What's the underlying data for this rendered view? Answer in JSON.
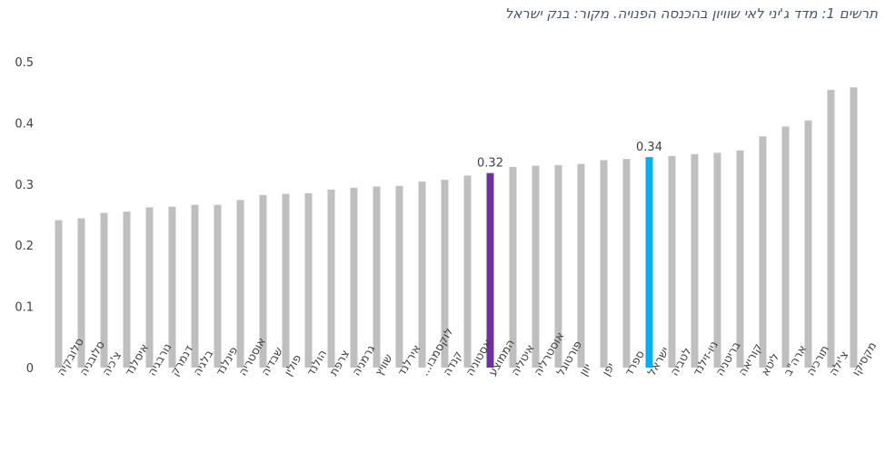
{
  "caption": "תרשים 1: מדד ג'יני לאי שוויון בהכנסה הפנויה. מקור: בנק ישראל",
  "chart_data": {
    "type": "bar",
    "title": "",
    "xlabel": "",
    "ylabel": "",
    "ylim": [
      0,
      0.5
    ],
    "yticks": [
      "0",
      "0.1",
      "0.2",
      "0.3",
      "0.4",
      "0.5"
    ],
    "grid": false,
    "legend": "none",
    "colors": {
      "default": "#bfbfbf",
      "highlight_average": "#7030a0",
      "highlight_israel": "#00b0f0"
    },
    "categories": [
      "סלובקיה",
      "סלובניה",
      "צ'כיה",
      "איסלנד",
      "נורבגיה",
      "דנמרק",
      "בלגיה",
      "פינלנד",
      "אוסטריה",
      "שבדיה",
      "פולין",
      "הולנד",
      "צרפת",
      "גרמניה",
      "שוויץ",
      "אירלנד",
      "לוקסמבו...",
      "קנדה",
      "אסטוניה",
      "הממוצע",
      "איטליה",
      "אוסטרליה",
      "פורטוגל",
      "יוון",
      "יפן",
      "ספרד",
      "ישראל",
      "לטביה",
      "ניו-זילנד",
      "בריטניה",
      "קוריאה",
      "ליטא",
      "ארה\"ב",
      "תורכיה",
      "צ'ילה",
      "מקסיקו"
    ],
    "values": [
      0.241,
      0.244,
      0.253,
      0.255,
      0.262,
      0.263,
      0.266,
      0.266,
      0.274,
      0.282,
      0.284,
      0.285,
      0.291,
      0.294,
      0.296,
      0.297,
      0.304,
      0.307,
      0.314,
      0.318,
      0.328,
      0.33,
      0.331,
      0.333,
      0.339,
      0.341,
      0.344,
      0.346,
      0.349,
      0.351,
      0.355,
      0.378,
      0.394,
      0.404,
      0.454,
      0.458
    ],
    "highlights": [
      {
        "category": "הממוצע",
        "color": "#7030a0",
        "label": "0.32"
      },
      {
        "category": "ישראל",
        "color": "#00b0f0",
        "label": "0.34"
      }
    ]
  }
}
